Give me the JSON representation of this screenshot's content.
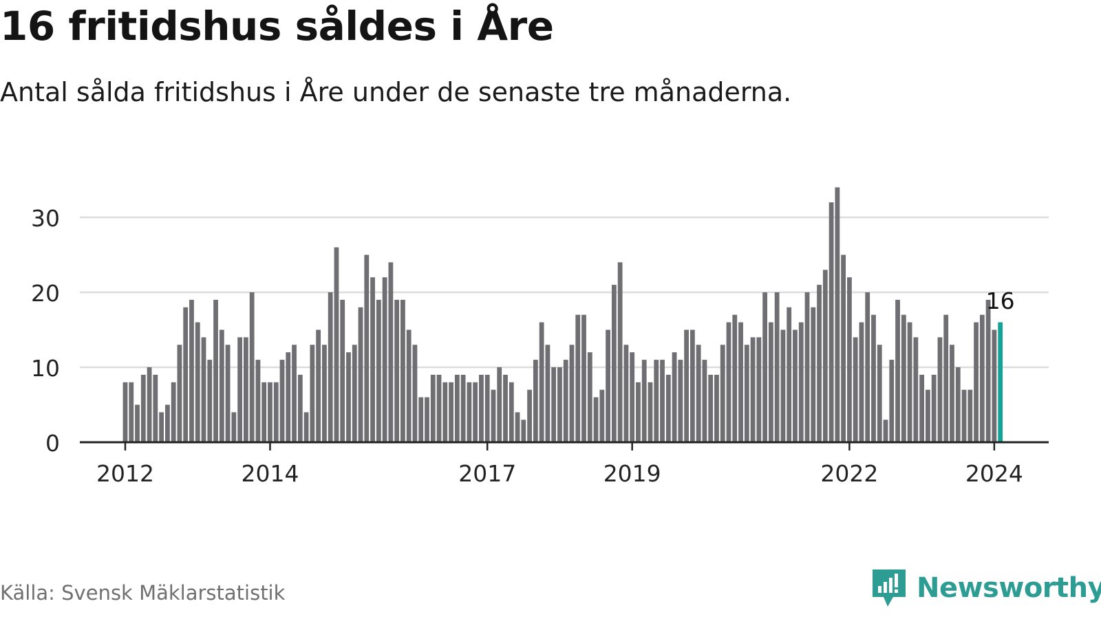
{
  "title": "16 fritidshus såldes i Åre",
  "subtitle": "Antal sålda fritidshus i Åre under de senaste tre månaderna.",
  "source": "Källa: Svensk Mäklarstatistik",
  "brand": {
    "name": "Newsworthy",
    "icon": "newsworthy-logo-icon",
    "color": "#2d9d94"
  },
  "colors": {
    "bar": "#6e6e73",
    "highlight": "#14a396",
    "grid": "#dcdcdc",
    "axis": "#222222",
    "text": "#222222"
  },
  "chart_data": {
    "type": "bar",
    "title": "16 fritidshus såldes i Åre",
    "ylabel": "",
    "xlabel": "",
    "ylim": [
      0,
      34
    ],
    "yticks": [
      0,
      10,
      20,
      30
    ],
    "grid": true,
    "start": "2012-01",
    "frequency": "monthly",
    "xticks": [
      {
        "label": "2012",
        "index": 0
      },
      {
        "label": "2014",
        "index": 24
      },
      {
        "label": "2017",
        "index": 60
      },
      {
        "label": "2019",
        "index": 84
      },
      {
        "label": "2022",
        "index": 120
      },
      {
        "label": "2024",
        "index": 144
      }
    ],
    "values": [
      8,
      8,
      5,
      9,
      10,
      9,
      4,
      5,
      8,
      13,
      18,
      19,
      16,
      14,
      11,
      19,
      15,
      13,
      4,
      14,
      14,
      20,
      11,
      8,
      8,
      8,
      11,
      12,
      13,
      9,
      4,
      13,
      15,
      13,
      20,
      26,
      19,
      12,
      13,
      18,
      25,
      22,
      19,
      22,
      24,
      19,
      19,
      15,
      13,
      6,
      6,
      9,
      9,
      8,
      8,
      9,
      9,
      8,
      8,
      9,
      9,
      7,
      10,
      9,
      8,
      4,
      3,
      7,
      11,
      16,
      13,
      10,
      10,
      11,
      13,
      17,
      17,
      12,
      6,
      7,
      15,
      21,
      24,
      13,
      12,
      8,
      11,
      8,
      11,
      11,
      9,
      12,
      11,
      15,
      15,
      13,
      11,
      9,
      9,
      13,
      16,
      17,
      16,
      13,
      14,
      14,
      20,
      16,
      20,
      15,
      18,
      15,
      16,
      20,
      18,
      21,
      23,
      32,
      34,
      25,
      22,
      14,
      16,
      20,
      17,
      13,
      3,
      11,
      19,
      17,
      16,
      14,
      9,
      7,
      9,
      14,
      17,
      13,
      10,
      7,
      7,
      16,
      17,
      19,
      15,
      16
    ],
    "highlight_index": 145,
    "annotation": {
      "index": 145,
      "text": "16"
    }
  }
}
